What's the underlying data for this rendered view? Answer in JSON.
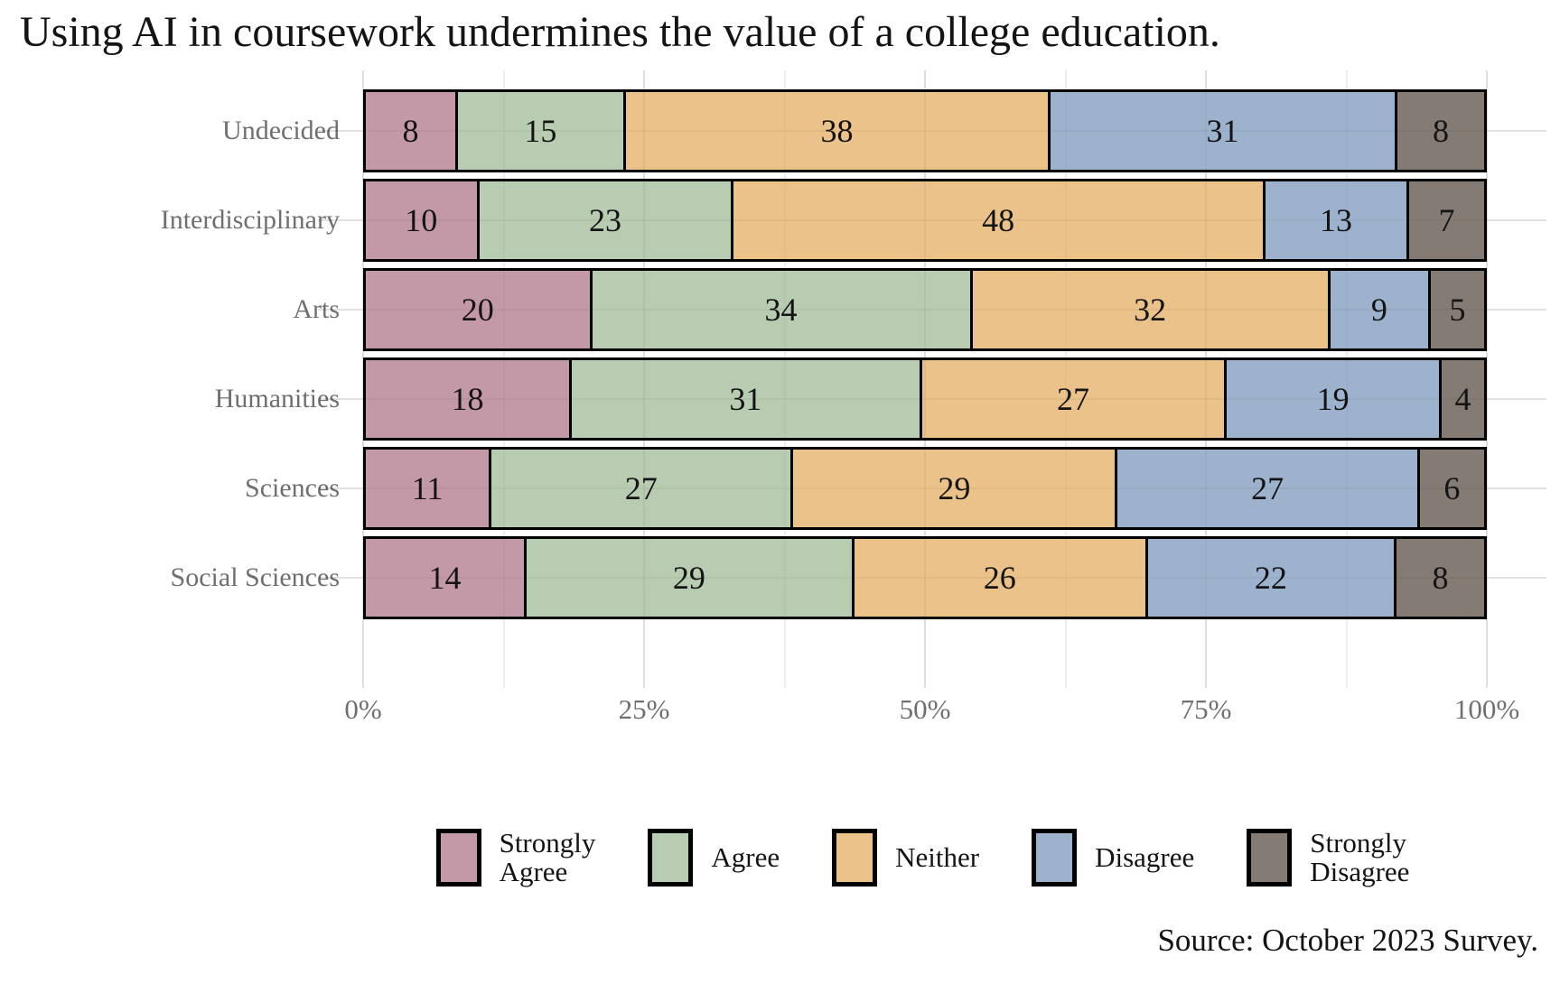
{
  "title": "Using AI in coursework undermines the value of a college education.",
  "source": "Source: October 2023 Survey.",
  "colors": {
    "strongly_agree": "#c399a7",
    "agree": "#b8ccb1",
    "neither": "#ebc289",
    "disagree": "#9db3cd",
    "strongly_disagree": "#847b75",
    "bar_border": "#000000",
    "axis_text": "#6f6f6f",
    "title_text": "#141414"
  },
  "legend": {
    "items": [
      {
        "label": "Strongly Agree",
        "lines": [
          "Strongly",
          "Agree"
        ],
        "color": "#c399a7"
      },
      {
        "label": "Agree",
        "lines": [
          "Agree"
        ],
        "color": "#b8ccb1"
      },
      {
        "label": "Neither",
        "lines": [
          "Neither"
        ],
        "color": "#ebc289"
      },
      {
        "label": "Disagree",
        "lines": [
          "Disagree"
        ],
        "color": "#9db3cd"
      },
      {
        "label": "Strongly Disagree",
        "lines": [
          "Strongly",
          "Disagree"
        ],
        "color": "#847b75"
      }
    ]
  },
  "chart_data": {
    "type": "bar",
    "orientation": "horizontal",
    "stacked": true,
    "normalized": true,
    "title": "Using AI in coursework undermines the value of a college education.",
    "xlabel": "",
    "ylabel": "",
    "xlim": [
      0,
      100
    ],
    "x_tick_labels": [
      "0%",
      "25%",
      "50%",
      "75%",
      "100%"
    ],
    "grid": "major-and-minor-vertical, faint horizontal at row centers",
    "legend_position": "bottom-center",
    "categories": [
      "Undecided",
      "Interdisciplinary",
      "Arts",
      "Humanities",
      "Sciences",
      "Social Sciences"
    ],
    "series": [
      {
        "name": "Strongly Agree",
        "color": "#c399a7",
        "values": [
          8,
          10,
          20,
          18,
          11,
          14
        ]
      },
      {
        "name": "Agree",
        "color": "#b8ccb1",
        "values": [
          15,
          23,
          34,
          31,
          27,
          29
        ]
      },
      {
        "name": "Neither",
        "color": "#ebc289",
        "values": [
          38,
          48,
          32,
          27,
          29,
          26
        ]
      },
      {
        "name": "Disagree",
        "color": "#9db3cd",
        "values": [
          31,
          13,
          9,
          19,
          27,
          22
        ]
      },
      {
        "name": "Strongly Disagree",
        "color": "#847b75",
        "values": [
          8,
          7,
          5,
          4,
          6,
          8
        ]
      }
    ]
  }
}
